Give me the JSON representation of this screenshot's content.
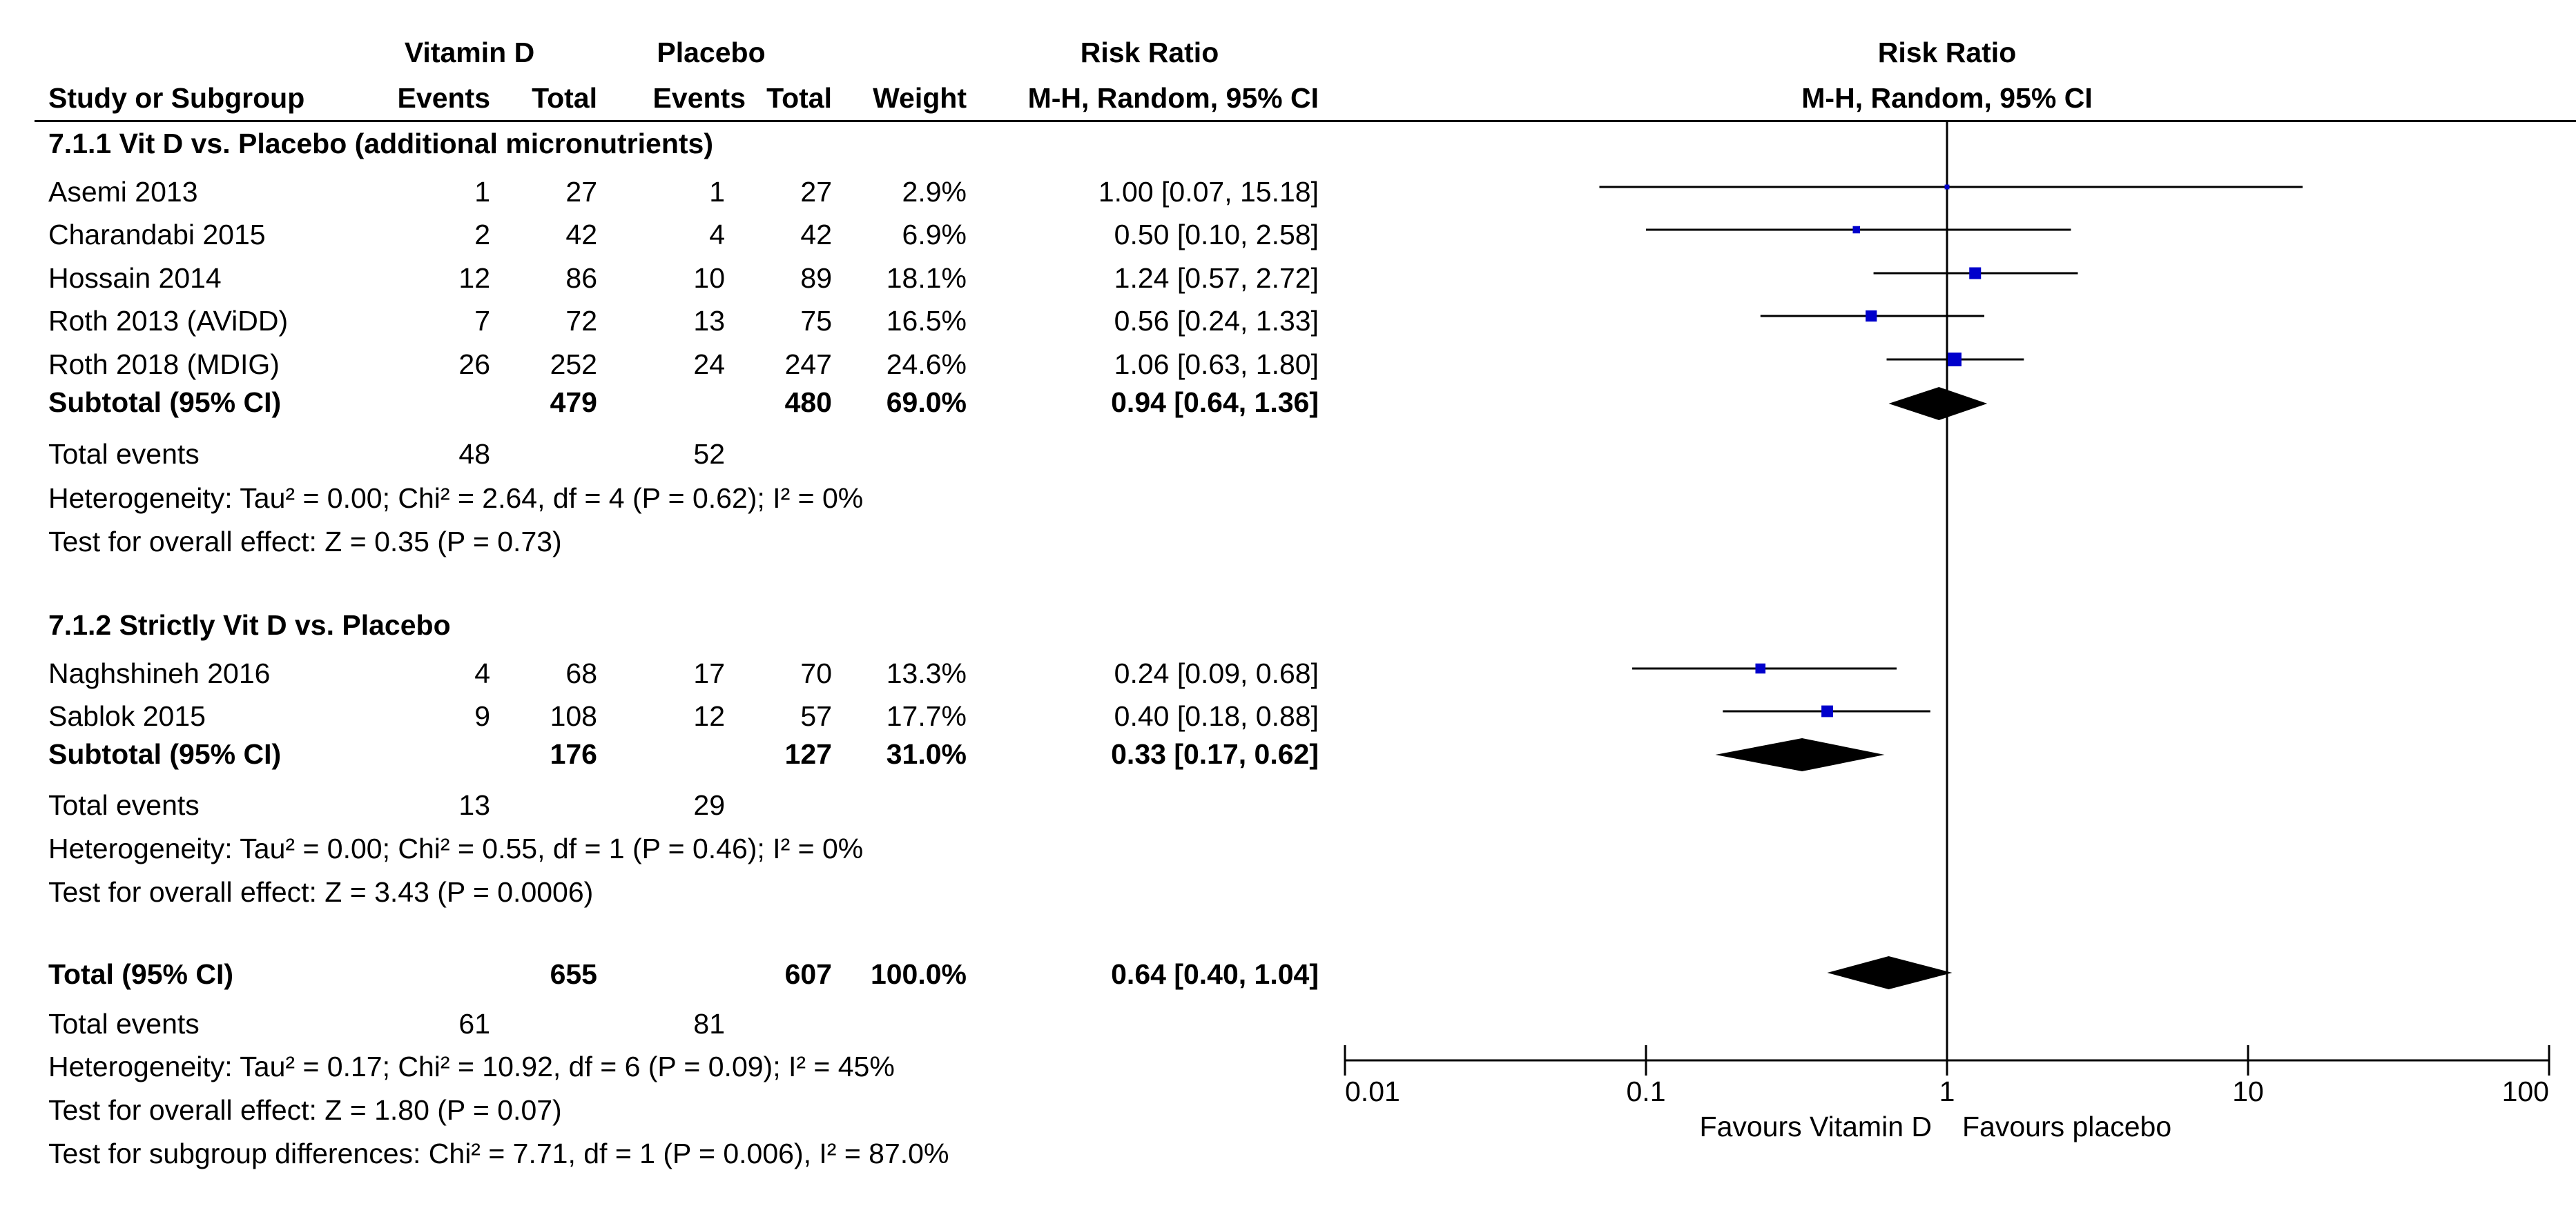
{
  "header": {
    "group1": "Vitamin D",
    "group2": "Placebo",
    "rr_title": "Risk Ratio",
    "study_col": "Study or Subgroup",
    "events": "Events",
    "total": "Total",
    "weight": "Weight",
    "method": "M-H, Random, 95% CI",
    "plot_title": "Risk Ratio",
    "plot_method": "M-H, Random, 95% CI"
  },
  "subgroup1": {
    "title": "7.1.1 Vit D vs. Placebo (additional micronutrients)",
    "studies": [
      {
        "name": "Asemi 2013",
        "e1": "1",
        "n1": "27",
        "e2": "1",
        "n2": "27",
        "w": "2.9%",
        "ci": "1.00 [0.07, 15.18]"
      },
      {
        "name": "Charandabi 2015",
        "e1": "2",
        "n1": "42",
        "e2": "4",
        "n2": "42",
        "w": "6.9%",
        "ci": "0.50 [0.10, 2.58]"
      },
      {
        "name": "Hossain 2014",
        "e1": "12",
        "n1": "86",
        "e2": "10",
        "n2": "89",
        "w": "18.1%",
        "ci": "1.24 [0.57, 2.72]"
      },
      {
        "name": "Roth 2013 (AViDD)",
        "e1": "7",
        "n1": "72",
        "e2": "13",
        "n2": "75",
        "w": "16.5%",
        "ci": "0.56 [0.24, 1.33]"
      },
      {
        "name": "Roth 2018 (MDIG)",
        "e1": "26",
        "n1": "252",
        "e2": "24",
        "n2": "247",
        "w": "24.6%",
        "ci": "1.06 [0.63, 1.80]"
      }
    ],
    "subtotal": {
      "label": "Subtotal (95% CI)",
      "n1": "479",
      "n2": "480",
      "w": "69.0%",
      "ci": "0.94 [0.64, 1.36]"
    },
    "events_label": "Total events",
    "events1": "48",
    "events2": "52",
    "heterogeneity": "Heterogeneity: Tau² = 0.00; Chi² = 2.64, df = 4 (P = 0.62); I² = 0%",
    "overall": "Test for overall effect: Z = 0.35 (P = 0.73)"
  },
  "subgroup2": {
    "title": "7.1.2 Strictly Vit D vs. Placebo",
    "studies": [
      {
        "name": "Naghshineh 2016",
        "e1": "4",
        "n1": "68",
        "e2": "17",
        "n2": "70",
        "w": "13.3%",
        "ci": "0.24 [0.09, 0.68]"
      },
      {
        "name": "Sablok 2015",
        "e1": "9",
        "n1": "108",
        "e2": "12",
        "n2": "57",
        "w": "17.7%",
        "ci": "0.40 [0.18, 0.88]"
      }
    ],
    "subtotal": {
      "label": "Subtotal (95% CI)",
      "n1": "176",
      "n2": "127",
      "w": "31.0%",
      "ci": "0.33 [0.17, 0.62]"
    },
    "events_label": "Total events",
    "events1": "13",
    "events2": "29",
    "heterogeneity": "Heterogeneity: Tau² = 0.00; Chi² = 0.55, df = 1 (P = 0.46); I² = 0%",
    "overall": "Test for overall effect: Z = 3.43 (P = 0.0006)"
  },
  "total": {
    "label": "Total (95% CI)",
    "n1": "655",
    "n2": "607",
    "w": "100.0%",
    "ci": "0.64 [0.40, 1.04]",
    "events_label": "Total events",
    "events1": "61",
    "events2": "81",
    "heterogeneity": "Heterogeneity: Tau² = 0.17; Chi² = 10.92, df = 6 (P = 0.09); I² = 45%",
    "overall": "Test for overall effect: Z = 1.80 (P = 0.07)",
    "subgroup_diff": "Test for subgroup differences: Chi² = 7.71, df = 1 (P = 0.006), I² = 87.0%"
  },
  "chart_data": {
    "type": "forest",
    "scale": "log",
    "xlim": [
      0.01,
      100
    ],
    "ticks": [
      0.01,
      0.1,
      1,
      10,
      100
    ],
    "tick_labels": [
      "0.01",
      "0.1",
      "1",
      "10",
      "100"
    ],
    "xlabel_left": "Favours Vitamin D",
    "xlabel_right": "Favours placebo",
    "colors": {
      "study_marker": "#0000cc",
      "diamond": "#000000",
      "line": "#000000"
    },
    "studies": [
      {
        "name": "Asemi 2013",
        "est": 1.0,
        "lo": 0.07,
        "hi": 15.18,
        "weight": 2.9
      },
      {
        "name": "Charandabi 2015",
        "est": 0.5,
        "lo": 0.1,
        "hi": 2.58,
        "weight": 6.9
      },
      {
        "name": "Hossain 2014",
        "est": 1.24,
        "lo": 0.57,
        "hi": 2.72,
        "weight": 18.1
      },
      {
        "name": "Roth 2013 (AViDD)",
        "est": 0.56,
        "lo": 0.24,
        "hi": 1.33,
        "weight": 16.5
      },
      {
        "name": "Roth 2018 (MDIG)",
        "est": 1.06,
        "lo": 0.63,
        "hi": 1.8,
        "weight": 24.6
      },
      {
        "name": "Naghshineh 2016",
        "est": 0.24,
        "lo": 0.09,
        "hi": 0.68,
        "weight": 13.3
      },
      {
        "name": "Sablok 2015",
        "est": 0.4,
        "lo": 0.18,
        "hi": 0.88,
        "weight": 17.7
      }
    ],
    "diamonds": [
      {
        "name": "Subtotal 7.1.1",
        "est": 0.94,
        "lo": 0.64,
        "hi": 1.36
      },
      {
        "name": "Subtotal 7.1.2",
        "est": 0.33,
        "lo": 0.17,
        "hi": 0.62
      },
      {
        "name": "Total",
        "est": 0.64,
        "lo": 0.4,
        "hi": 1.04
      }
    ]
  }
}
